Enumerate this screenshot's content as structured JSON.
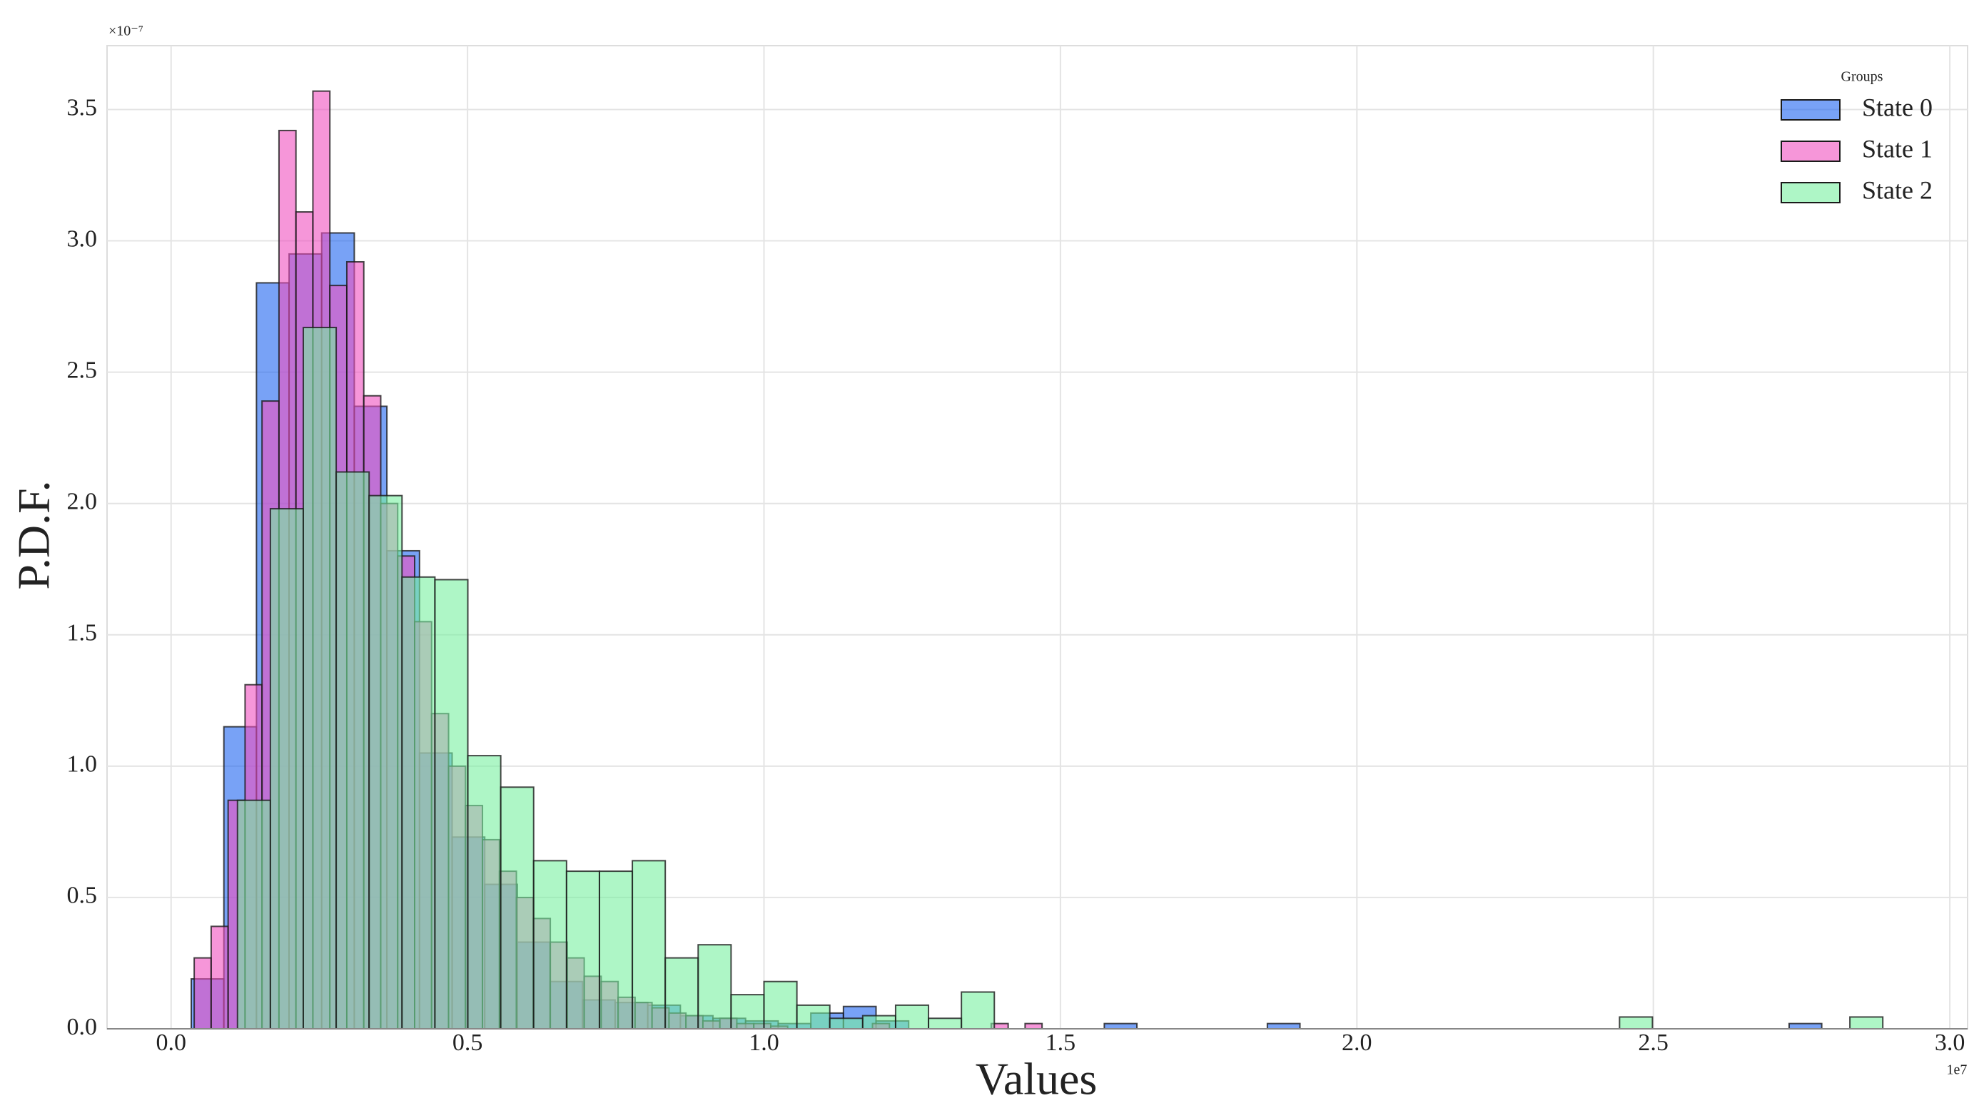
{
  "chart_data": {
    "type": "histogram",
    "x_label": "Values",
    "y_label": "P.D.F.",
    "x_offset_label": "1e7",
    "y_offset_label": "×10⁻⁷",
    "legend_title": "Groups",
    "legend": "upper right",
    "grid": true,
    "xlim": [
      -0.108,
      3.03
    ],
    "ylim": [
      0,
      3.743
    ],
    "xticks": [
      {
        "value": 0,
        "label": "0.0"
      },
      0.5,
      {
        "value": 1,
        "label": "1.0"
      },
      1.5,
      {
        "value": 2,
        "label": "2.0"
      },
      2.5,
      {
        "value": 3,
        "label": "3.0"
      }
    ],
    "yticks": [
      {
        "value": 0,
        "label": "0.0"
      },
      0.5,
      {
        "value": 1,
        "label": "1.0"
      },
      1.5,
      {
        "value": 2,
        "label": "2.0"
      },
      2.5,
      {
        "value": 3,
        "label": "3.0"
      },
      3.5
    ],
    "series": [
      {
        "name": "State 0",
        "color": "#1e64f0",
        "bins": [
          0.034,
          0.089,
          0.144,
          0.199,
          0.254,
          0.309,
          0.364,
          0.419,
          0.474,
          0.529,
          0.584,
          0.639,
          0.694,
          0.749,
          0.804,
          0.859,
          0.914,
          0.969,
          1.024,
          1.079,
          1.134,
          1.189,
          1.244,
          1.299,
          1.354,
          1.409,
          1.464,
          1.519,
          1.574,
          1.629,
          1.684,
          1.739,
          1.794,
          1.849,
          1.904,
          1.959,
          2.014,
          2.069,
          2.124,
          2.179,
          2.234,
          2.289,
          2.344,
          2.399,
          2.454,
          2.509,
          2.564,
          2.619,
          2.674,
          2.729,
          2.784
        ],
        "values": [
          0.19,
          1.15,
          2.84,
          2.95,
          3.03,
          2.37,
          1.82,
          1.05,
          0.73,
          0.55,
          0.33,
          0.18,
          0.11,
          0.1,
          0.09,
          0.05,
          0.04,
          0.03,
          0.02,
          0.06,
          0.085,
          0.03,
          0,
          0,
          0,
          0,
          0,
          0,
          0.02,
          0,
          0,
          0,
          0,
          0.02,
          0,
          0,
          0,
          0,
          0,
          0,
          0,
          0,
          0,
          0,
          0,
          0,
          0,
          0,
          0,
          0.02
        ]
      },
      {
        "name": "State 1",
        "color": "#f050c0",
        "bins": [
          0.039,
          0.0676,
          0.0962,
          0.1248,
          0.1534,
          0.182,
          0.2106,
          0.2392,
          0.2678,
          0.2964,
          0.325,
          0.3536,
          0.3822,
          0.4108,
          0.4394,
          0.468,
          0.4966,
          0.5252,
          0.5538,
          0.5824,
          0.611,
          0.6396,
          0.6682,
          0.6968,
          0.7254,
          0.754,
          0.7826,
          0.8112,
          0.8398,
          0.8684,
          0.897,
          0.9256,
          0.9542,
          0.9828,
          1.0114,
          1.04,
          1.0686,
          1.0972,
          1.1258,
          1.1544,
          1.183,
          1.2116,
          1.2402,
          1.2688,
          1.2974,
          1.326,
          1.3546,
          1.3832,
          1.4118,
          1.4404,
          1.469
        ],
        "values": [
          0.27,
          0.39,
          0.87,
          1.31,
          2.39,
          3.42,
          3.11,
          3.57,
          2.83,
          2.92,
          2.41,
          2.0,
          1.8,
          1.55,
          1.2,
          1.0,
          0.85,
          0.72,
          0.6,
          0.5,
          0.42,
          0.33,
          0.27,
          0.2,
          0.18,
          0.12,
          0.1,
          0.08,
          0.06,
          0.05,
          0.03,
          0.04,
          0.02,
          0.02,
          0.01,
          0,
          0,
          0,
          0,
          0,
          0.02,
          0,
          0,
          0,
          0,
          0,
          0,
          0.02,
          0,
          0.02
        ]
      },
      {
        "name": "State 2",
        "color": "#78f0a0",
        "bins": [
          0.112,
          0.1675,
          0.223,
          0.2785,
          0.334,
          0.3895,
          0.445,
          0.5005,
          0.556,
          0.6115,
          0.667,
          0.7225,
          0.778,
          0.8335,
          0.889,
          0.9445,
          1.0,
          1.0555,
          1.111,
          1.1665,
          1.222,
          1.2775,
          1.333,
          1.3885,
          1.444,
          1.4995,
          1.555,
          1.6105,
          1.666,
          1.7215,
          1.777,
          1.8325,
          1.888,
          1.9435,
          1.999,
          2.0545,
          2.11,
          2.1655,
          2.221,
          2.2765,
          2.332,
          2.3875,
          2.443,
          2.4985,
          2.554,
          2.6095,
          2.665,
          2.7205,
          2.776,
          2.8315,
          2.887
        ],
        "values": [
          0.87,
          1.98,
          2.67,
          2.12,
          2.03,
          1.72,
          1.71,
          1.04,
          0.92,
          0.64,
          0.6,
          0.6,
          0.64,
          0.27,
          0.32,
          0.13,
          0.18,
          0.09,
          0.04,
          0.05,
          0.09,
          0.04,
          0.14,
          0,
          0,
          0,
          0,
          0,
          0,
          0,
          0,
          0,
          0,
          0,
          0,
          0,
          0,
          0,
          0,
          0,
          0,
          0,
          0.045,
          0,
          0,
          0,
          0,
          0,
          0,
          0.045
        ]
      }
    ]
  }
}
